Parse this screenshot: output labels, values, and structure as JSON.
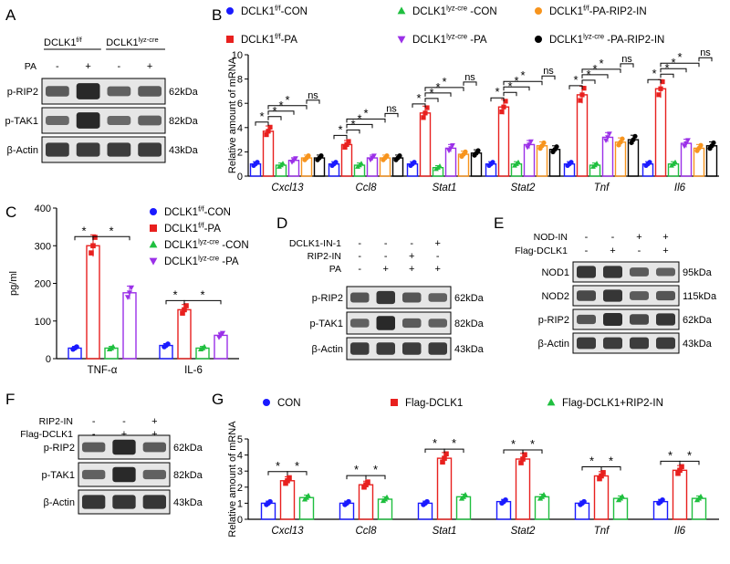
{
  "panel_labels": {
    "A": "A",
    "B": "B",
    "C": "C",
    "D": "D",
    "E": "E",
    "F": "F",
    "G": "G"
  },
  "colors": {
    "blue": "#1a1aff",
    "green": "#1fbf3f",
    "red": "#e8201e",
    "orange": "#f7941d",
    "purple": "#9b30e8",
    "black": "#000000",
    "band": "#222222",
    "blot_bg": "#e6e6e6"
  },
  "blots": {
    "A": {
      "header_left": "DCLK1f/f",
      "header_right": "DCLK1lyz-cre",
      "treat_row": {
        "name": "PA",
        "marks": [
          "-",
          "+",
          "-",
          "+"
        ]
      },
      "rows": [
        {
          "name": "p-RIP2",
          "kda": "62kDa",
          "intensity": [
            0.55,
            0.95,
            0.5,
            0.55
          ]
        },
        {
          "name": "p-TAK1",
          "kda": "82kDa",
          "intensity": [
            0.45,
            0.95,
            0.45,
            0.5
          ]
        },
        {
          "name": "β-Actin",
          "kda": "43kDa",
          "intensity": [
            0.8,
            0.8,
            0.8,
            0.8
          ]
        }
      ]
    },
    "D": {
      "treat_rows": [
        {
          "name": "DCLK1-IN-1",
          "marks": [
            "-",
            "-",
            "-",
            "+"
          ]
        },
        {
          "name": "RIP2-IN",
          "marks": [
            "-",
            "-",
            "+",
            "-"
          ]
        },
        {
          "name": "PA",
          "marks": [
            "-",
            "+",
            "+",
            "+"
          ]
        }
      ],
      "rows": [
        {
          "name": "p-RIP2",
          "kda": "62kDa",
          "intensity": [
            0.6,
            0.85,
            0.6,
            0.5
          ]
        },
        {
          "name": "p-TAK1",
          "kda": "82kDa",
          "intensity": [
            0.5,
            0.95,
            0.55,
            0.5
          ]
        },
        {
          "name": "β-Actin",
          "kda": "43kDa",
          "intensity": [
            0.8,
            0.8,
            0.8,
            0.8
          ]
        }
      ]
    },
    "E": {
      "treat_rows": [
        {
          "name": "NOD-IN",
          "marks": [
            "-",
            "-",
            "+",
            "+"
          ]
        },
        {
          "name": "Flag-DCLK1",
          "marks": [
            "-",
            "+",
            "-",
            "+"
          ]
        }
      ],
      "rows": [
        {
          "name": "NOD1",
          "kda": "95kDa",
          "intensity": [
            0.85,
            0.85,
            0.55,
            0.5
          ]
        },
        {
          "name": "NOD2",
          "kda": "115kDa",
          "intensity": [
            0.7,
            0.85,
            0.55,
            0.6
          ]
        },
        {
          "name": "p-RIP2",
          "kda": "62kDa",
          "intensity": [
            0.6,
            0.9,
            0.7,
            0.85
          ]
        },
        {
          "name": "β-Actin",
          "kda": "43kDa",
          "intensity": [
            0.8,
            0.8,
            0.8,
            0.8
          ]
        }
      ]
    },
    "F": {
      "treat_rows": [
        {
          "name": "RIP2-IN",
          "marks": [
            "-",
            "-",
            "+"
          ]
        },
        {
          "name": "Flag-DCLK1",
          "marks": [
            "-",
            "+",
            "+"
          ]
        }
      ],
      "rows": [
        {
          "name": "p-RIP2",
          "kda": "62kDa",
          "intensity": [
            0.55,
            0.95,
            0.55
          ]
        },
        {
          "name": "p-TAK1",
          "kda": "82kDa",
          "intensity": [
            0.5,
            0.95,
            0.5
          ]
        },
        {
          "name": "β-Actin",
          "kda": "43kDa",
          "intensity": [
            0.85,
            0.85,
            0.85
          ]
        }
      ]
    }
  },
  "chart_data": [
    {
      "panel": "B",
      "type": "bar",
      "ylabel": "Relative amount of mRNA",
      "ylim": [
        0,
        10
      ],
      "yticks": [
        0,
        2,
        4,
        6,
        8,
        10
      ],
      "categories": [
        "Cxcl13",
        "Ccl8",
        "Stat1",
        "Stat2",
        "Tnf",
        "Il6"
      ],
      "series": [
        {
          "name": "DCLK1f/f-CON",
          "color": "blue",
          "marker": "circle",
          "values": [
            1.0,
            1.0,
            1.0,
            1.0,
            1.0,
            1.0
          ]
        },
        {
          "name": "DCLK1f/f-PA",
          "color": "red",
          "marker": "square",
          "values": [
            3.7,
            2.6,
            5.2,
            5.7,
            6.7,
            7.2
          ]
        },
        {
          "name": "DCLK1lyz-cre-CON",
          "color": "green",
          "marker": "triangle",
          "values": [
            0.9,
            0.9,
            0.7,
            1.0,
            0.9,
            1.0
          ]
        },
        {
          "name": "DCLK1lyz-cre-PA",
          "color": "purple",
          "marker": "invtriangle",
          "values": [
            1.3,
            1.5,
            2.3,
            2.6,
            3.2,
            2.7
          ]
        },
        {
          "name": "DCLK1f/f-PA-RIP2-IN",
          "color": "orange",
          "marker": "circle",
          "values": [
            1.5,
            1.5,
            1.8,
            2.5,
            2.8,
            2.3
          ]
        },
        {
          "name": "DCLK1lyz-cre-PA-RIP2-IN",
          "color": "black",
          "marker": "circle",
          "values": [
            1.5,
            1.5,
            1.9,
            2.2,
            3.0,
            2.5
          ]
        }
      ],
      "legend": [
        {
          "label": "DCLK1f/f-CON",
          "color": "blue",
          "marker": "circle"
        },
        {
          "label": "DCLK1lyz-cre -CON",
          "color": "green",
          "marker": "triangle"
        },
        {
          "label": "DCLK1f/f-PA-RIP2-IN",
          "color": "orange",
          "marker": "circle"
        },
        {
          "label": "DCLK1f/f-PA",
          "color": "red",
          "marker": "square"
        },
        {
          "label": "DCLK1lyz-cre -PA",
          "color": "purple",
          "marker": "invtriangle"
        },
        {
          "label": "DCLK1lyz-cre -PA-RIP2-IN",
          "color": "black",
          "marker": "circle"
        }
      ],
      "annotations": {
        "star": "*",
        "ns": "ns"
      },
      "legend_position": "top"
    },
    {
      "panel": "C",
      "type": "bar",
      "ylabel": "pg/ml",
      "ylim": [
        0,
        400
      ],
      "yticks": [
        0,
        100,
        200,
        300,
        400
      ],
      "categories": [
        "TNF-α",
        "IL-6"
      ],
      "series": [
        {
          "name": "DCLK1f/f-CON",
          "color": "blue",
          "marker": "circle",
          "values": [
            28,
            35
          ]
        },
        {
          "name": "DCLK1f/f-PA",
          "color": "red",
          "marker": "square",
          "values": [
            300,
            130
          ]
        },
        {
          "name": "DCLK1lyz-cre-CON",
          "color": "green",
          "marker": "triangle",
          "values": [
            28,
            28
          ]
        },
        {
          "name": "DCLK1lyz-cre-PA",
          "color": "purple",
          "marker": "invtriangle",
          "values": [
            175,
            62
          ]
        }
      ],
      "legend": [
        {
          "label": "DCLK1f/f-CON",
          "color": "blue",
          "marker": "circle"
        },
        {
          "label": "DCLK1f/f-PA",
          "color": "red",
          "marker": "square"
        },
        {
          "label": "DCLK1lyz-cre -CON",
          "color": "green",
          "marker": "triangle"
        },
        {
          "label": "DCLK1lyz-cre -PA",
          "color": "purple",
          "marker": "invtriangle"
        }
      ],
      "annotations": {
        "star": "*"
      },
      "legend_position": "top-right"
    },
    {
      "panel": "G",
      "type": "bar",
      "ylabel": "Relative amount of mRNA",
      "ylim": [
        0,
        5
      ],
      "yticks": [
        0,
        1,
        2,
        3,
        4,
        5
      ],
      "categories": [
        "Cxcl13",
        "Ccl8",
        "Stat1",
        "Stat2",
        "Tnf",
        "Il6"
      ],
      "series": [
        {
          "name": "CON",
          "color": "blue",
          "marker": "circle",
          "values": [
            1.0,
            1.0,
            1.0,
            1.1,
            1.0,
            1.1
          ]
        },
        {
          "name": "Flag-DCLK1",
          "color": "red",
          "marker": "square",
          "values": [
            2.4,
            2.15,
            3.8,
            3.75,
            2.7,
            3.05
          ]
        },
        {
          "name": "Flag-DCLK1+RIP2-IN",
          "color": "green",
          "marker": "triangle",
          "values": [
            1.35,
            1.25,
            1.4,
            1.4,
            1.3,
            1.3
          ]
        }
      ],
      "legend": [
        {
          "label": "CON",
          "color": "blue",
          "marker": "circle"
        },
        {
          "label": "Flag-DCLK1",
          "color": "red",
          "marker": "square"
        },
        {
          "label": "Flag-DCLK1+RIP2-IN",
          "color": "green",
          "marker": "triangle"
        }
      ],
      "annotations": {
        "star": "*"
      },
      "legend_position": "top"
    }
  ]
}
